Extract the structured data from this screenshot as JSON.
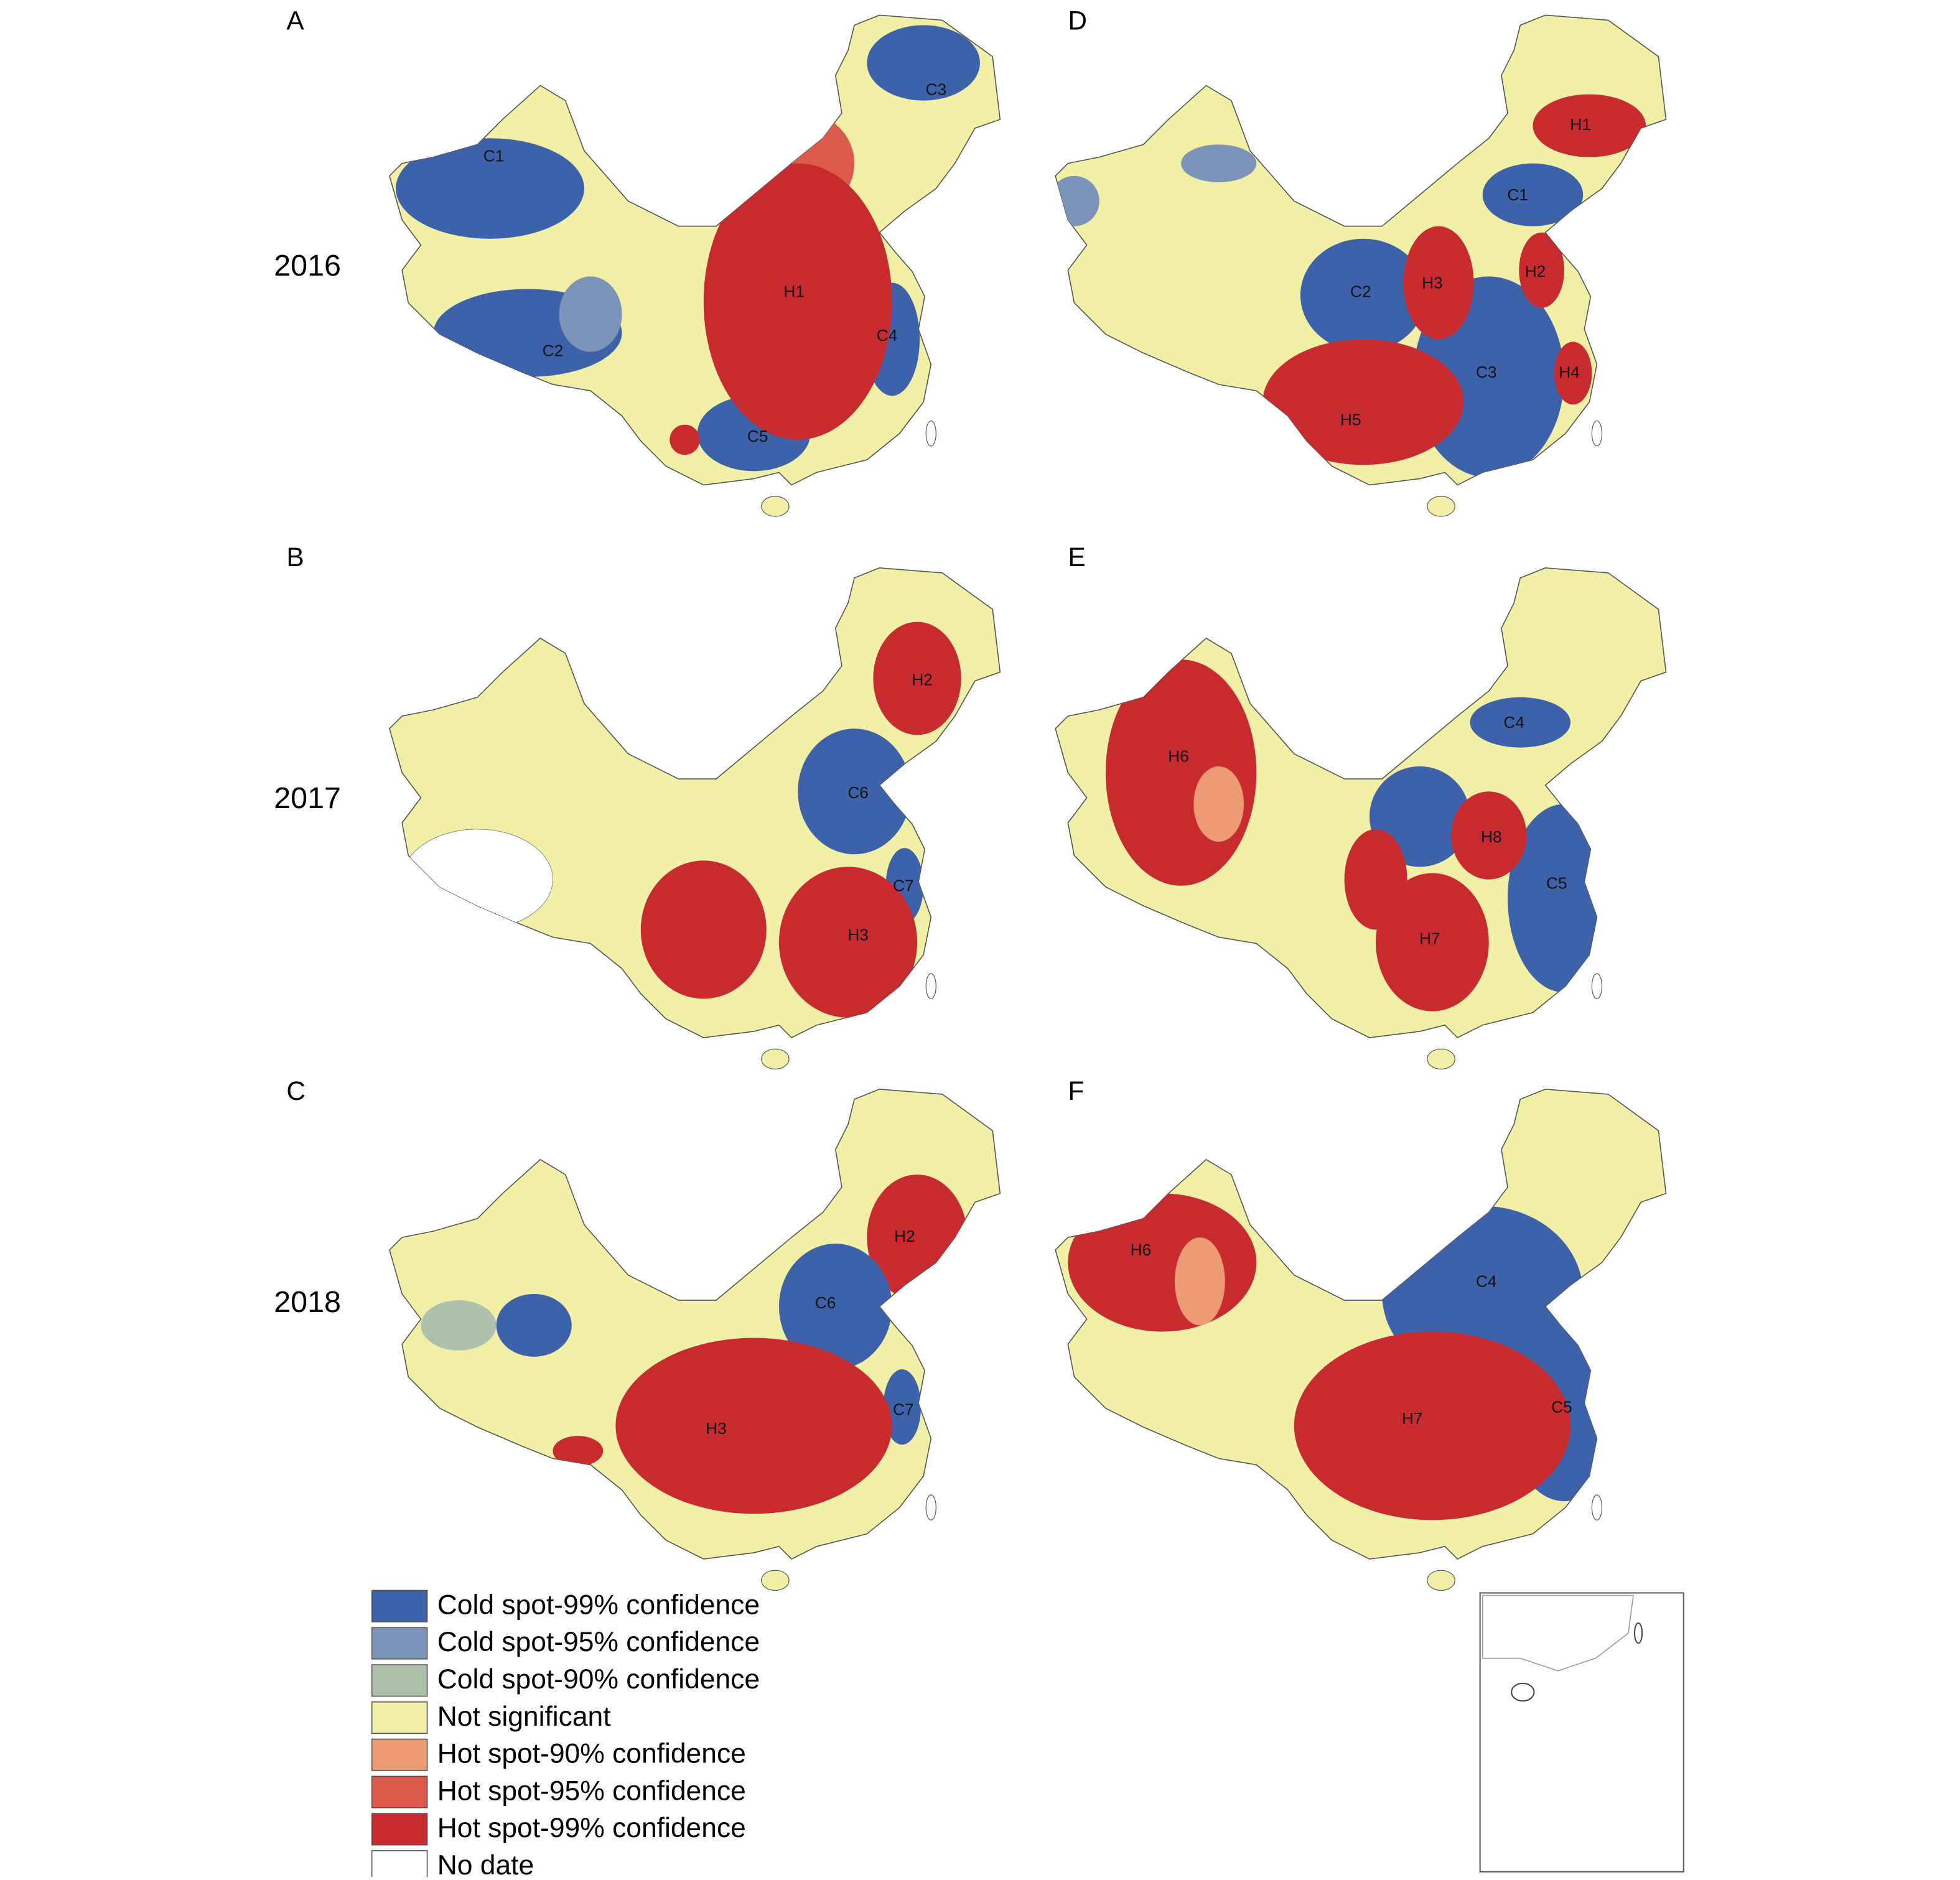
{
  "panels": [
    {
      "letter": "A",
      "clusters": [
        "C1",
        "C2",
        "C3",
        "C4",
        "C5",
        "H1"
      ]
    },
    {
      "letter": "D",
      "clusters": [
        "H1",
        "C1",
        "H3",
        "H2",
        "C2",
        "H4",
        "C3",
        "H5"
      ]
    },
    {
      "letter": "B",
      "clusters": [
        "H2",
        "C6",
        "C7",
        "H3"
      ]
    },
    {
      "letter": "E",
      "clusters": [
        "H6",
        "C4",
        "H8",
        "C5",
        "H7"
      ]
    },
    {
      "letter": "C",
      "clusters": [
        "H2",
        "C6",
        "C7",
        "H3"
      ]
    },
    {
      "letter": "F",
      "clusters": [
        "H6",
        "C4",
        "C5",
        "H7"
      ]
    }
  ],
  "years": [
    "2016",
    "2017",
    "2018"
  ],
  "legend": [
    {
      "label": "Cold spot-99% confidence",
      "color": "#3d62aa"
    },
    {
      "label": "Cold spot-95% confidence",
      "color": "#7b94b8"
    },
    {
      "label": "Cold spot-90% confidence",
      "color": "#b0c2ae"
    },
    {
      "label": "Not significant",
      "color": "#f1f0a6"
    },
    {
      "label": "Hot spot-90% confidence",
      "color": "#ec9b74"
    },
    {
      "label": "Hot spot-95% confidence",
      "color": "#dc5a4c"
    },
    {
      "label": "Hot spot-99% confidence",
      "color": "#c82b2f"
    },
    {
      "label": "No date",
      "color": "#ffffff"
    }
  ]
}
